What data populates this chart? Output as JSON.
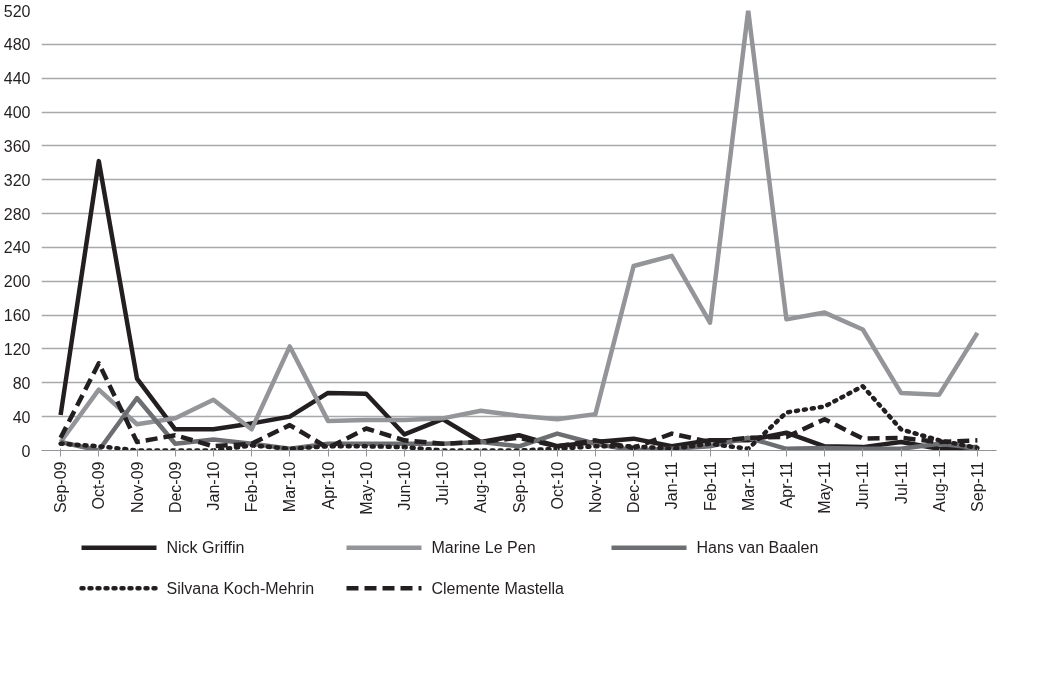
{
  "chart_data": {
    "type": "line",
    "categories": [
      "Sep-09",
      "Oct-09",
      "Nov-09",
      "Dec-09",
      "Jan-10",
      "Feb-10",
      "Mar-10",
      "Apr-10",
      "May-10",
      "Jun-10",
      "Jul-10",
      "Aug-10",
      "Sep-10",
      "Oct-10",
      "Nov-10",
      "Dec-10",
      "Jan-11",
      "Feb-11",
      "Mar-11",
      "Apr-11",
      "May-11",
      "Jun-11",
      "Jul-11",
      "Aug-11",
      "Sep-11"
    ],
    "series": [
      {
        "name": "Nick Griffin",
        "color": "#231f20",
        "line_style": "solid",
        "values": [
          42,
          342,
          85,
          25,
          25,
          32,
          40,
          68,
          67,
          19,
          37,
          10,
          18,
          5,
          10,
          14,
          5,
          12,
          12,
          21,
          5,
          4,
          10,
          2,
          4
        ]
      },
      {
        "name": "Marine Le Pen",
        "color": "#939598",
        "line_style": "solid",
        "values": [
          10,
          72,
          31,
          38,
          60,
          25,
          123,
          35,
          36,
          36,
          38,
          47,
          41,
          37,
          43,
          218,
          230,
          151,
          520,
          155,
          163,
          143,
          68,
          66,
          139
        ]
      },
      {
        "name": "Hans van Baalen",
        "color": "#6d6e71",
        "line_style": "solid",
        "values": [
          10,
          0,
          62,
          8,
          13,
          8,
          2,
          8,
          8,
          8,
          8,
          10,
          5,
          20,
          8,
          0,
          2,
          5,
          15,
          2,
          3,
          2,
          2,
          8,
          3
        ]
      },
      {
        "name": "Silvana Koch-Mehrin",
        "color": "#231f20",
        "line_style": "dotted",
        "values": [
          8,
          5,
          0,
          0,
          0,
          6,
          2,
          5,
          5,
          4,
          0,
          0,
          0,
          2,
          5,
          5,
          2,
          8,
          2,
          45,
          52,
          76,
          25,
          12,
          3
        ]
      },
      {
        "name": "Clemente Mastella",
        "color": "#231f20",
        "line_style": "dashed",
        "values": [
          15,
          103,
          10,
          18,
          5,
          8,
          30,
          3,
          26,
          12,
          8,
          10,
          15,
          5,
          12,
          3,
          20,
          10,
          15,
          16,
          37,
          14,
          15,
          10,
          12
        ]
      }
    ],
    "ylim": [
      0,
      520
    ],
    "yticks": [
      0,
      40,
      80,
      120,
      160,
      200,
      240,
      280,
      320,
      360,
      400,
      440,
      480,
      520
    ],
    "grid": "y",
    "legend": "bottom",
    "marker": "none"
  }
}
